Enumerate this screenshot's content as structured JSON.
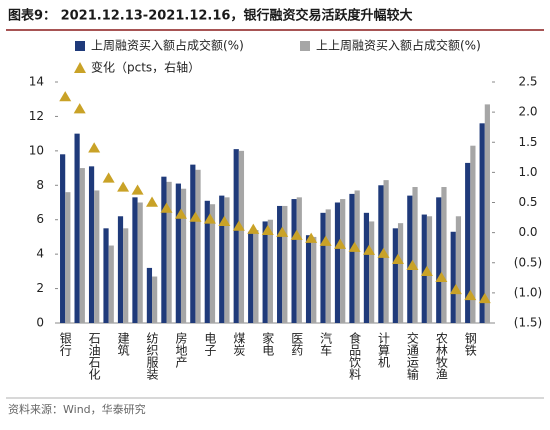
{
  "chart_data": {
    "type": "bar",
    "title": "图表9： 2021.12.13-2021.12.16，银行融资交易活跃度升幅较大",
    "source": "资料来源：Wind，华泰研究",
    "categories": [
      "银行",
      null,
      "石油石化",
      null,
      "建筑",
      null,
      "纺织服装",
      null,
      "房地产",
      null,
      "电子",
      null,
      "煤炭",
      null,
      "家电",
      null,
      "医药",
      null,
      "汽车",
      null,
      "食品饮料",
      null,
      "计算机",
      null,
      "交通运输",
      null,
      "农林牧渔",
      null,
      "钢铁",
      null
    ],
    "series": [
      {
        "name": "上周融资买入额占成交额(%)",
        "color": "#1f3a7a",
        "values": [
          9.8,
          11.0,
          9.1,
          5.5,
          6.2,
          7.3,
          3.2,
          8.5,
          8.1,
          9.2,
          7.1,
          7.4,
          10.1,
          5.3,
          5.9,
          6.8,
          7.2,
          5.1,
          6.4,
          7.0,
          7.5,
          6.4,
          8.0,
          5.5,
          7.4,
          6.3,
          7.3,
          5.3,
          9.3,
          11.6
        ]
      },
      {
        "name": "上上周融资买入额占成交额(%)",
        "color": "#a6a6a6",
        "values": [
          7.6,
          9.0,
          7.7,
          4.5,
          5.5,
          7.0,
          2.7,
          8.2,
          7.8,
          8.9,
          6.9,
          7.3,
          10.0,
          5.4,
          6.0,
          6.8,
          7.3,
          5.0,
          6.6,
          7.2,
          7.7,
          5.9,
          8.3,
          5.8,
          7.9,
          6.2,
          7.9,
          6.2,
          10.3,
          12.7
        ]
      },
      {
        "name": "变化（pcts，右轴）",
        "color": "#c9a227",
        "axis": "y2",
        "marker": "triangle",
        "values": [
          2.25,
          2.05,
          1.4,
          0.9,
          0.75,
          0.7,
          0.5,
          0.4,
          0.3,
          0.25,
          0.22,
          0.18,
          0.1,
          0.05,
          0.03,
          0.0,
          -0.05,
          -0.1,
          -0.15,
          -0.2,
          -0.25,
          -0.3,
          -0.35,
          -0.45,
          -0.55,
          -0.65,
          -0.75,
          -0.95,
          -1.05,
          -1.1
        ]
      }
    ],
    "ylim": [
      0,
      14
    ],
    "yticks": [
      0,
      2,
      4,
      6,
      8,
      10,
      12,
      14
    ],
    "y2lim": [
      -1.5,
      2.5
    ],
    "y2ticks": [
      {
        "value": -1.5,
        "label": "(1.5)"
      },
      {
        "value": -1.0,
        "label": "(1.0)"
      },
      {
        "value": -0.5,
        "label": "(0.5)"
      },
      {
        "value": 0,
        "label": "0.0"
      },
      0.5,
      {
        "value": 1.0,
        "label": "1.0"
      },
      1.5,
      {
        "value": 2.0,
        "label": "2.0"
      },
      2.5
    ],
    "grid": false
  }
}
